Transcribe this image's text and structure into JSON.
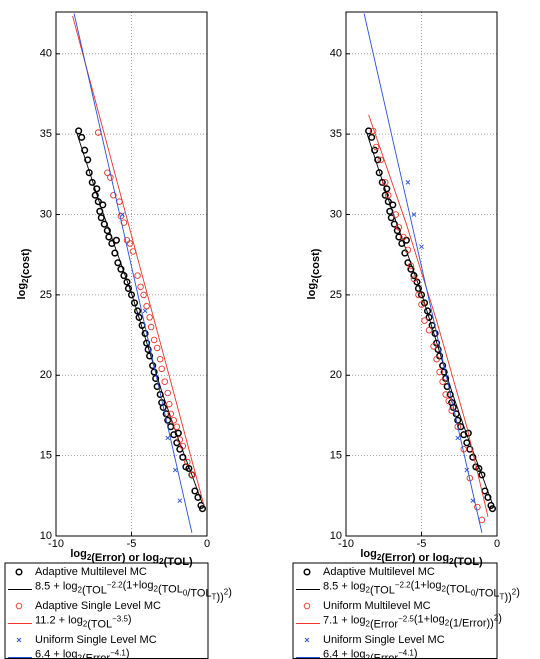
{
  "chart_data": [
    {
      "type": "scatter",
      "x_label": [
        "log",
        {
          "sub": "2"
        },
        "(Error) or log",
        {
          "sub": "2"
        },
        "(TOL)"
      ],
      "y_label": [
        "log",
        {
          "sub": "2"
        },
        "(cost)"
      ],
      "xlim": [
        -10,
        0
      ],
      "ylim": [
        10,
        42.6
      ],
      "xticks": [
        -10,
        -5,
        0
      ],
      "yticks": [
        10,
        15,
        20,
        25,
        30,
        35,
        40
      ],
      "grid": true,
      "series": [
        {
          "name": "Adaptive Multilevel MC",
          "mark": "circle",
          "color": "#000000",
          "x": [
            -8.5,
            -8.3,
            -8.1,
            -7.9,
            -7.8,
            -7.6,
            -7.4,
            -7.3,
            -7.2,
            -7.1,
            -7.0,
            -6.9,
            -6.8,
            -6.6,
            -6.5,
            -6.3,
            -6.1,
            -6.0,
            -5.9,
            -5.7,
            -5.5,
            -5.3,
            -5.2,
            -5.0,
            -4.8,
            -4.6,
            -4.5,
            -4.3,
            -4.1,
            -4.0,
            -3.9,
            -3.8,
            -3.6,
            -3.5,
            -3.4,
            -3.3,
            -3.1,
            -3.0,
            -2.9,
            -2.7,
            -2.6,
            -2.4,
            -2.2,
            -2.0,
            -1.9,
            -1.8,
            -1.6,
            -1.4,
            -1.2,
            -1.0,
            -0.8,
            -0.6,
            -0.4,
            -0.3
          ],
          "values": [
            35.2,
            34.8,
            34.0,
            33.4,
            32.6,
            32.0,
            31.2,
            31.6,
            30.8,
            30.2,
            29.8,
            30.6,
            29.4,
            29.0,
            28.6,
            28.2,
            27.6,
            28.4,
            27.0,
            26.6,
            26.2,
            25.8,
            25.4,
            25.0,
            24.5,
            24.0,
            23.6,
            23.1,
            22.6,
            22.0,
            21.6,
            21.2,
            20.6,
            20.2,
            19.8,
            19.3,
            18.8,
            18.3,
            18.0,
            17.6,
            17.2,
            16.8,
            16.3,
            15.8,
            16.4,
            15.4,
            14.9,
            14.3,
            14.2,
            13.8,
            12.8,
            12.4,
            11.9,
            11.7
          ]
        },
        {
          "name": [
            "8.5 + log",
            {
              "sub": "2"
            },
            "(TOL",
            {
              "sup": "−2.2"
            },
            "(1+log",
            {
              "sub": "2"
            },
            "(TOL",
            {
              "sub": "0"
            },
            "/TOL",
            {
              "sub": "T"
            },
            "))",
            {
              "sup": "2"
            },
            ")"
          ],
          "mark": "line",
          "color": "#000000",
          "x": [
            -8.6,
            -7,
            -5,
            -3,
            -2,
            -1,
            -0.3
          ],
          "values": [
            35,
            30.4,
            25.1,
            19.0,
            16.3,
            13.8,
            12.0
          ]
        },
        {
          "name": "Adaptive Single Level MC",
          "mark": "circle",
          "color": "#e8362a",
          "x": [
            -7.2,
            -6.6,
            -6.4,
            -6.2,
            -5.8,
            -5.7,
            -5.5,
            -5.3,
            -5.1,
            -4.9,
            -4.6,
            -4.4,
            -4.2,
            -4.0,
            -3.8,
            -3.7,
            -3.5,
            -3.3,
            -3.1,
            -3.0,
            -2.8,
            -2.6,
            -2.5,
            -2.4,
            -2.2,
            -2.0,
            -1.8,
            -1.6,
            -1.3,
            -1.0
          ],
          "values": [
            35.1,
            32.6,
            32.3,
            31.2,
            30.8,
            29.9,
            29.5,
            28.4,
            28.2,
            27.7,
            26.2,
            25.5,
            25.0,
            24.3,
            23.6,
            23.0,
            22.2,
            21.7,
            21.0,
            20.4,
            19.6,
            18.9,
            18.2,
            17.6,
            17.2,
            16.8,
            16.0,
            15.6,
            14.6,
            13.8
          ]
        },
        {
          "name": [
            "11.2 + log",
            {
              "sub": "2"
            },
            "(TOL",
            {
              "sup": "−3.5"
            },
            ")"
          ],
          "mark": "line",
          "color": "#e8362a",
          "x": [
            -8.9,
            -0.2
          ],
          "values": [
            42.35,
            11.9
          ]
        },
        {
          "name": "Uniform Single Level MC",
          "mark": "x",
          "color": "#2a4fd6",
          "x": [
            -5.6,
            -4.1,
            -2.6,
            -2.1,
            -1.8
          ],
          "values": [
            30,
            24,
            16.1,
            14.1,
            12.2
          ]
        },
        {
          "name": [
            "6.4 +  log",
            {
              "sub": "2"
            },
            "(Error",
            {
              "sup": "−4.1"
            },
            ")"
          ],
          "mark": "line",
          "color": "#2a4fd6",
          "x": [
            -8.8,
            -1.0
          ],
          "values": [
            42.5,
            10.2
          ]
        }
      ]
    },
    {
      "type": "scatter",
      "x_label": [
        "log",
        {
          "sub": "2"
        },
        "(Error) or log",
        {
          "sub": "2"
        },
        "(TOL)"
      ],
      "y_label": [
        "log",
        {
          "sub": "2"
        },
        "(cost)"
      ],
      "xlim": [
        -10,
        0
      ],
      "ylim": [
        10,
        42.6
      ],
      "xticks": [
        -10,
        -5,
        0
      ],
      "yticks": [
        10,
        15,
        20,
        25,
        30,
        35,
        40
      ],
      "grid": true,
      "series": [
        {
          "name": "Adaptive Multilevel MC",
          "mark": "circle",
          "color": "#000000",
          "x": [
            -8.5,
            -8.3,
            -8.1,
            -7.9,
            -7.8,
            -7.6,
            -7.4,
            -7.3,
            -7.2,
            -7.1,
            -7.0,
            -6.9,
            -6.8,
            -6.6,
            -6.5,
            -6.3,
            -6.1,
            -6.0,
            -5.9,
            -5.7,
            -5.5,
            -5.3,
            -5.2,
            -5.0,
            -4.8,
            -4.6,
            -4.5,
            -4.3,
            -4.1,
            -4.0,
            -3.9,
            -3.8,
            -3.6,
            -3.5,
            -3.4,
            -3.3,
            -3.1,
            -3.0,
            -2.9,
            -2.7,
            -2.6,
            -2.4,
            -2.2,
            -2.0,
            -1.9,
            -1.8,
            -1.6,
            -1.4,
            -1.2,
            -1.0,
            -0.8,
            -0.6,
            -0.4,
            -0.3
          ],
          "values": [
            35.2,
            34.8,
            34.0,
            33.4,
            32.6,
            32.0,
            31.2,
            31.6,
            30.8,
            30.2,
            29.8,
            30.6,
            29.4,
            29.0,
            28.6,
            28.2,
            27.6,
            28.4,
            27.0,
            26.6,
            26.2,
            25.8,
            25.4,
            25.0,
            24.5,
            24.0,
            23.6,
            23.1,
            22.6,
            22.0,
            21.6,
            21.2,
            20.6,
            20.2,
            19.8,
            19.3,
            18.8,
            18.3,
            18.0,
            17.6,
            17.2,
            16.8,
            16.3,
            15.8,
            16.4,
            15.4,
            14.9,
            14.3,
            14.2,
            13.8,
            12.8,
            12.4,
            11.9,
            11.7
          ]
        },
        {
          "name": [
            "8.5 + log",
            {
              "sub": "2"
            },
            "(TOL",
            {
              "sup": "−2.2"
            },
            "(1+log",
            {
              "sub": "2"
            },
            "(TOL",
            {
              "sub": "0"
            },
            "/TOL",
            {
              "sub": "T"
            },
            "))",
            {
              "sup": "2"
            },
            ")"
          ],
          "mark": "line",
          "color": "#000000",
          "x": [
            -8.6,
            -7,
            -5,
            -3,
            -2,
            -1,
            -0.3
          ],
          "values": [
            35,
            30.4,
            25.1,
            19.0,
            16.3,
            13.8,
            12.0
          ]
        },
        {
          "name": "Uniform Multilevel MC",
          "mark": "circle",
          "color": "#e8362a",
          "x": [
            -8.2,
            -8.0,
            -7.7,
            -7.4,
            -7.2,
            -6.7,
            -6.5,
            -6.2,
            -5.9,
            -5.7,
            -5.5,
            -5.2,
            -5.0,
            -4.8,
            -4.5,
            -4.2,
            -4.0,
            -3.8,
            -3.6,
            -3.4,
            -3.2,
            -3.0,
            -2.6,
            -2.2,
            -1.8,
            -1.3,
            -1.0
          ],
          "values": [
            35.2,
            34.2,
            33.4,
            32.0,
            31.2,
            30.0,
            29.2,
            28.6,
            27.8,
            26.8,
            26.0,
            25.0,
            24.4,
            23.4,
            22.8,
            21.8,
            21.0,
            20.2,
            19.6,
            18.8,
            18.4,
            17.8,
            16.8,
            15.4,
            13.6,
            11.8,
            11.0
          ]
        },
        {
          "name": [
            "7.1 +  log",
            {
              "sub": "2"
            },
            "(Error",
            {
              "sup": "−2.5"
            },
            "(1+log",
            {
              "sub": "2"
            },
            "(1/Error))",
            {
              "sup": "2"
            },
            ")"
          ],
          "mark": "line",
          "color": "#e8362a",
          "x": [
            -8.5,
            -6,
            -4,
            -2,
            -0.6
          ],
          "values": [
            36.2,
            29.4,
            23.4,
            16.8,
            11.2
          ]
        },
        {
          "name": "Uniform Single Level MC",
          "mark": "x",
          "color": "#2a4fd6",
          "x": [
            -5.9,
            -5.5,
            -5.0,
            -2.6,
            -2.0,
            -1.6
          ],
          "values": [
            32,
            30,
            28,
            16.1,
            14.1,
            12.2
          ]
        },
        {
          "name": [
            "6.4 +  log",
            {
              "sub": "2"
            },
            "(Error",
            {
              "sup": "−4.1"
            },
            ")"
          ],
          "mark": "line",
          "color": "#2a4fd6",
          "x": [
            -8.8,
            -1.0
          ],
          "values": [
            42.5,
            10.2
          ]
        }
      ]
    }
  ]
}
